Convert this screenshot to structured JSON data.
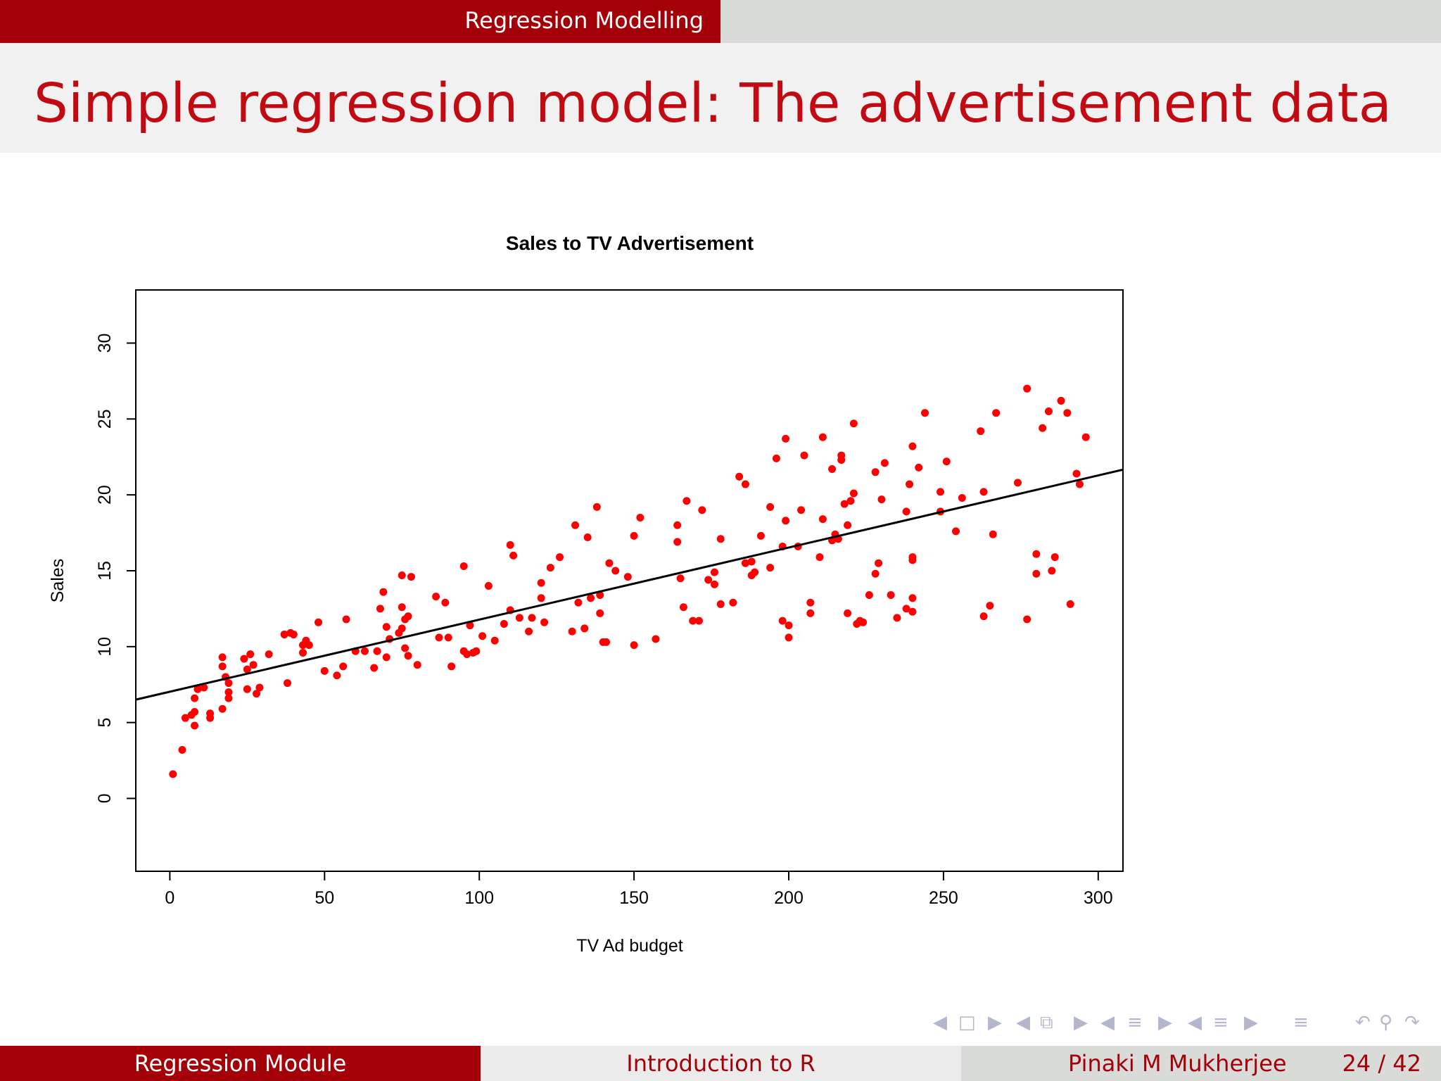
{
  "header": {
    "section": "Regression Modelling",
    "title": "Simple regression model: The advertisement data"
  },
  "footer": {
    "left": "Regression Module",
    "center": "Introduction to R",
    "author": "Pinaki M Mukherjee",
    "page": "24 / 42"
  },
  "nav_icons": [
    "arrow-left-icon",
    "frame-icon",
    "arrow-right-icon",
    "arrow-left-icon",
    "subsection-icon",
    "arrow-right-icon",
    "arrow-left-icon",
    "section-icon",
    "arrow-right-icon",
    "arrow-left-icon",
    "section-icon",
    "arrow-right-icon",
    "align-icon",
    "undo-icon",
    "search-icon",
    "redo-icon"
  ],
  "colors": {
    "accent": "#a30008",
    "title": "#c20a12",
    "points": "#ff0000",
    "line": "#000000"
  },
  "chart_data": {
    "type": "scatter",
    "title": "Sales to TV Advertisement",
    "xlabel": "TV Ad budget",
    "ylabel": "Sales",
    "xlim": [
      -11,
      308
    ],
    "ylim": [
      -4.8,
      33.5
    ],
    "xticks": [
      0,
      50,
      100,
      150,
      200,
      250,
      300
    ],
    "yticks": [
      0,
      5,
      10,
      15,
      20,
      25,
      30
    ],
    "grid": false,
    "regression_line": {
      "intercept": 7.03,
      "slope": 0.0475
    },
    "points": [
      [
        1,
        1.6
      ],
      [
        4,
        3.2
      ],
      [
        5,
        5.3
      ],
      [
        7,
        5.5
      ],
      [
        8,
        5.7
      ],
      [
        8,
        6.6
      ],
      [
        9,
        7.2
      ],
      [
        8,
        4.8
      ],
      [
        11,
        7.3
      ],
      [
        13,
        5.3
      ],
      [
        13,
        5.6
      ],
      [
        17,
        5.9
      ],
      [
        17,
        8.7
      ],
      [
        17,
        9.3
      ],
      [
        18,
        8.0
      ],
      [
        19,
        6.6
      ],
      [
        19,
        7.0
      ],
      [
        19,
        7.6
      ],
      [
        24,
        9.2
      ],
      [
        25,
        8.5
      ],
      [
        25,
        7.2
      ],
      [
        26,
        9.5
      ],
      [
        27,
        8.8
      ],
      [
        28,
        6.9
      ],
      [
        29,
        7.3
      ],
      [
        32,
        9.5
      ],
      [
        37,
        10.8
      ],
      [
        39,
        10.9
      ],
      [
        38,
        7.6
      ],
      [
        40,
        10.8
      ],
      [
        43,
        9.6
      ],
      [
        43,
        10.1
      ],
      [
        44,
        10.4
      ],
      [
        45,
        10.1
      ],
      [
        48,
        11.6
      ],
      [
        50,
        8.4
      ],
      [
        54,
        8.1
      ],
      [
        56,
        8.7
      ],
      [
        57,
        11.8
      ],
      [
        60,
        9.7
      ],
      [
        63,
        9.7
      ],
      [
        66,
        8.6
      ],
      [
        67,
        9.7
      ],
      [
        68,
        12.5
      ],
      [
        69,
        13.6
      ],
      [
        70,
        9.3
      ],
      [
        70,
        11.3
      ],
      [
        71,
        10.5
      ],
      [
        74,
        10.9
      ],
      [
        75,
        12.6
      ],
      [
        75,
        11.2
      ],
      [
        75,
        14.7
      ],
      [
        76,
        9.9
      ],
      [
        76,
        11.8
      ],
      [
        77,
        9.4
      ],
      [
        77,
        12.0
      ],
      [
        78,
        14.6
      ],
      [
        80,
        8.8
      ],
      [
        86,
        13.3
      ],
      [
        87,
        10.6
      ],
      [
        89,
        12.9
      ],
      [
        90,
        10.6
      ],
      [
        91,
        8.7
      ],
      [
        95,
        15.3
      ],
      [
        95,
        9.7
      ],
      [
        96,
        9.5
      ],
      [
        97,
        11.4
      ],
      [
        98,
        9.6
      ],
      [
        99,
        9.7
      ],
      [
        101,
        10.7
      ],
      [
        103,
        14.0
      ],
      [
        105,
        10.4
      ],
      [
        108,
        11.5
      ],
      [
        110,
        12.4
      ],
      [
        110,
        16.7
      ],
      [
        111,
        16.0
      ],
      [
        113,
        11.9
      ],
      [
        116,
        11.0
      ],
      [
        117,
        11.9
      ],
      [
        120,
        13.2
      ],
      [
        120,
        14.2
      ],
      [
        121,
        11.6
      ],
      [
        123,
        15.2
      ],
      [
        126,
        15.9
      ],
      [
        130,
        11.0
      ],
      [
        131,
        18.0
      ],
      [
        132,
        12.9
      ],
      [
        134,
        11.2
      ],
      [
        135,
        17.2
      ],
      [
        136,
        13.2
      ],
      [
        138,
        19.2
      ],
      [
        139,
        12.2
      ],
      [
        139,
        13.4
      ],
      [
        140,
        10.3
      ],
      [
        141,
        10.3
      ],
      [
        142,
        15.5
      ],
      [
        144,
        15.0
      ],
      [
        148,
        14.6
      ],
      [
        150,
        10.1
      ],
      [
        150,
        17.3
      ],
      [
        152,
        18.5
      ],
      [
        157,
        10.5
      ],
      [
        164,
        18.0
      ],
      [
        164,
        16.9
      ],
      [
        165,
        14.5
      ],
      [
        166,
        12.6
      ],
      [
        167,
        19.6
      ],
      [
        169,
        11.7
      ],
      [
        171,
        11.7
      ],
      [
        172,
        19.0
      ],
      [
        174,
        14.4
      ],
      [
        176,
        14.9
      ],
      [
        176,
        14.1
      ],
      [
        178,
        12.8
      ],
      [
        178,
        17.1
      ],
      [
        182,
        12.9
      ],
      [
        184,
        21.2
      ],
      [
        186,
        20.7
      ],
      [
        186,
        15.5
      ],
      [
        188,
        15.6
      ],
      [
        188,
        14.7
      ],
      [
        189,
        14.9
      ],
      [
        191,
        17.3
      ],
      [
        194,
        15.2
      ],
      [
        194,
        19.2
      ],
      [
        196,
        22.4
      ],
      [
        198,
        16.6
      ],
      [
        198,
        11.7
      ],
      [
        199,
        18.3
      ],
      [
        199,
        23.7
      ],
      [
        200,
        11.4
      ],
      [
        200,
        10.6
      ],
      [
        203,
        16.6
      ],
      [
        204,
        19.0
      ],
      [
        205,
        22.6
      ],
      [
        207,
        12.2
      ],
      [
        207,
        12.9
      ],
      [
        210,
        15.9
      ],
      [
        211,
        18.4
      ],
      [
        211,
        23.8
      ],
      [
        214,
        21.7
      ],
      [
        214,
        17.0
      ],
      [
        215,
        17.4
      ],
      [
        216,
        17.1
      ],
      [
        217,
        22.6
      ],
      [
        217,
        22.3
      ],
      [
        218,
        19.4
      ],
      [
        219,
        18.0
      ],
      [
        219,
        12.2
      ],
      [
        220,
        19.6
      ],
      [
        221,
        20.1
      ],
      [
        221,
        24.7
      ],
      [
        222,
        11.5
      ],
      [
        223,
        11.7
      ],
      [
        224,
        11.6
      ],
      [
        226,
        13.4
      ],
      [
        228,
        14.8
      ],
      [
        228,
        21.5
      ],
      [
        229,
        15.5
      ],
      [
        230,
        19.7
      ],
      [
        231,
        22.1
      ],
      [
        233,
        13.4
      ],
      [
        235,
        11.9
      ],
      [
        238,
        18.9
      ],
      [
        238,
        12.5
      ],
      [
        239,
        20.7
      ],
      [
        240,
        12.3
      ],
      [
        240,
        13.2
      ],
      [
        240,
        15.7
      ],
      [
        240,
        15.9
      ],
      [
        240,
        23.2
      ],
      [
        242,
        21.8
      ],
      [
        244,
        25.4
      ],
      [
        249,
        20.2
      ],
      [
        249,
        18.9
      ],
      [
        251,
        22.2
      ],
      [
        254,
        17.6
      ],
      [
        256,
        19.8
      ],
      [
        262,
        24.2
      ],
      [
        263,
        20.2
      ],
      [
        263,
        12.0
      ],
      [
        265,
        12.7
      ],
      [
        266,
        17.4
      ],
      [
        267,
        25.4
      ],
      [
        274,
        20.8
      ],
      [
        277,
        11.8
      ],
      [
        277,
        27.0
      ],
      [
        280,
        14.8
      ],
      [
        280,
        16.1
      ],
      [
        282,
        24.4
      ],
      [
        284,
        25.5
      ],
      [
        285,
        15.0
      ],
      [
        286,
        15.9
      ],
      [
        288,
        26.2
      ],
      [
        290,
        25.4
      ],
      [
        291,
        12.8
      ],
      [
        293,
        21.4
      ],
      [
        294,
        20.7
      ],
      [
        296,
        23.8
      ]
    ]
  }
}
